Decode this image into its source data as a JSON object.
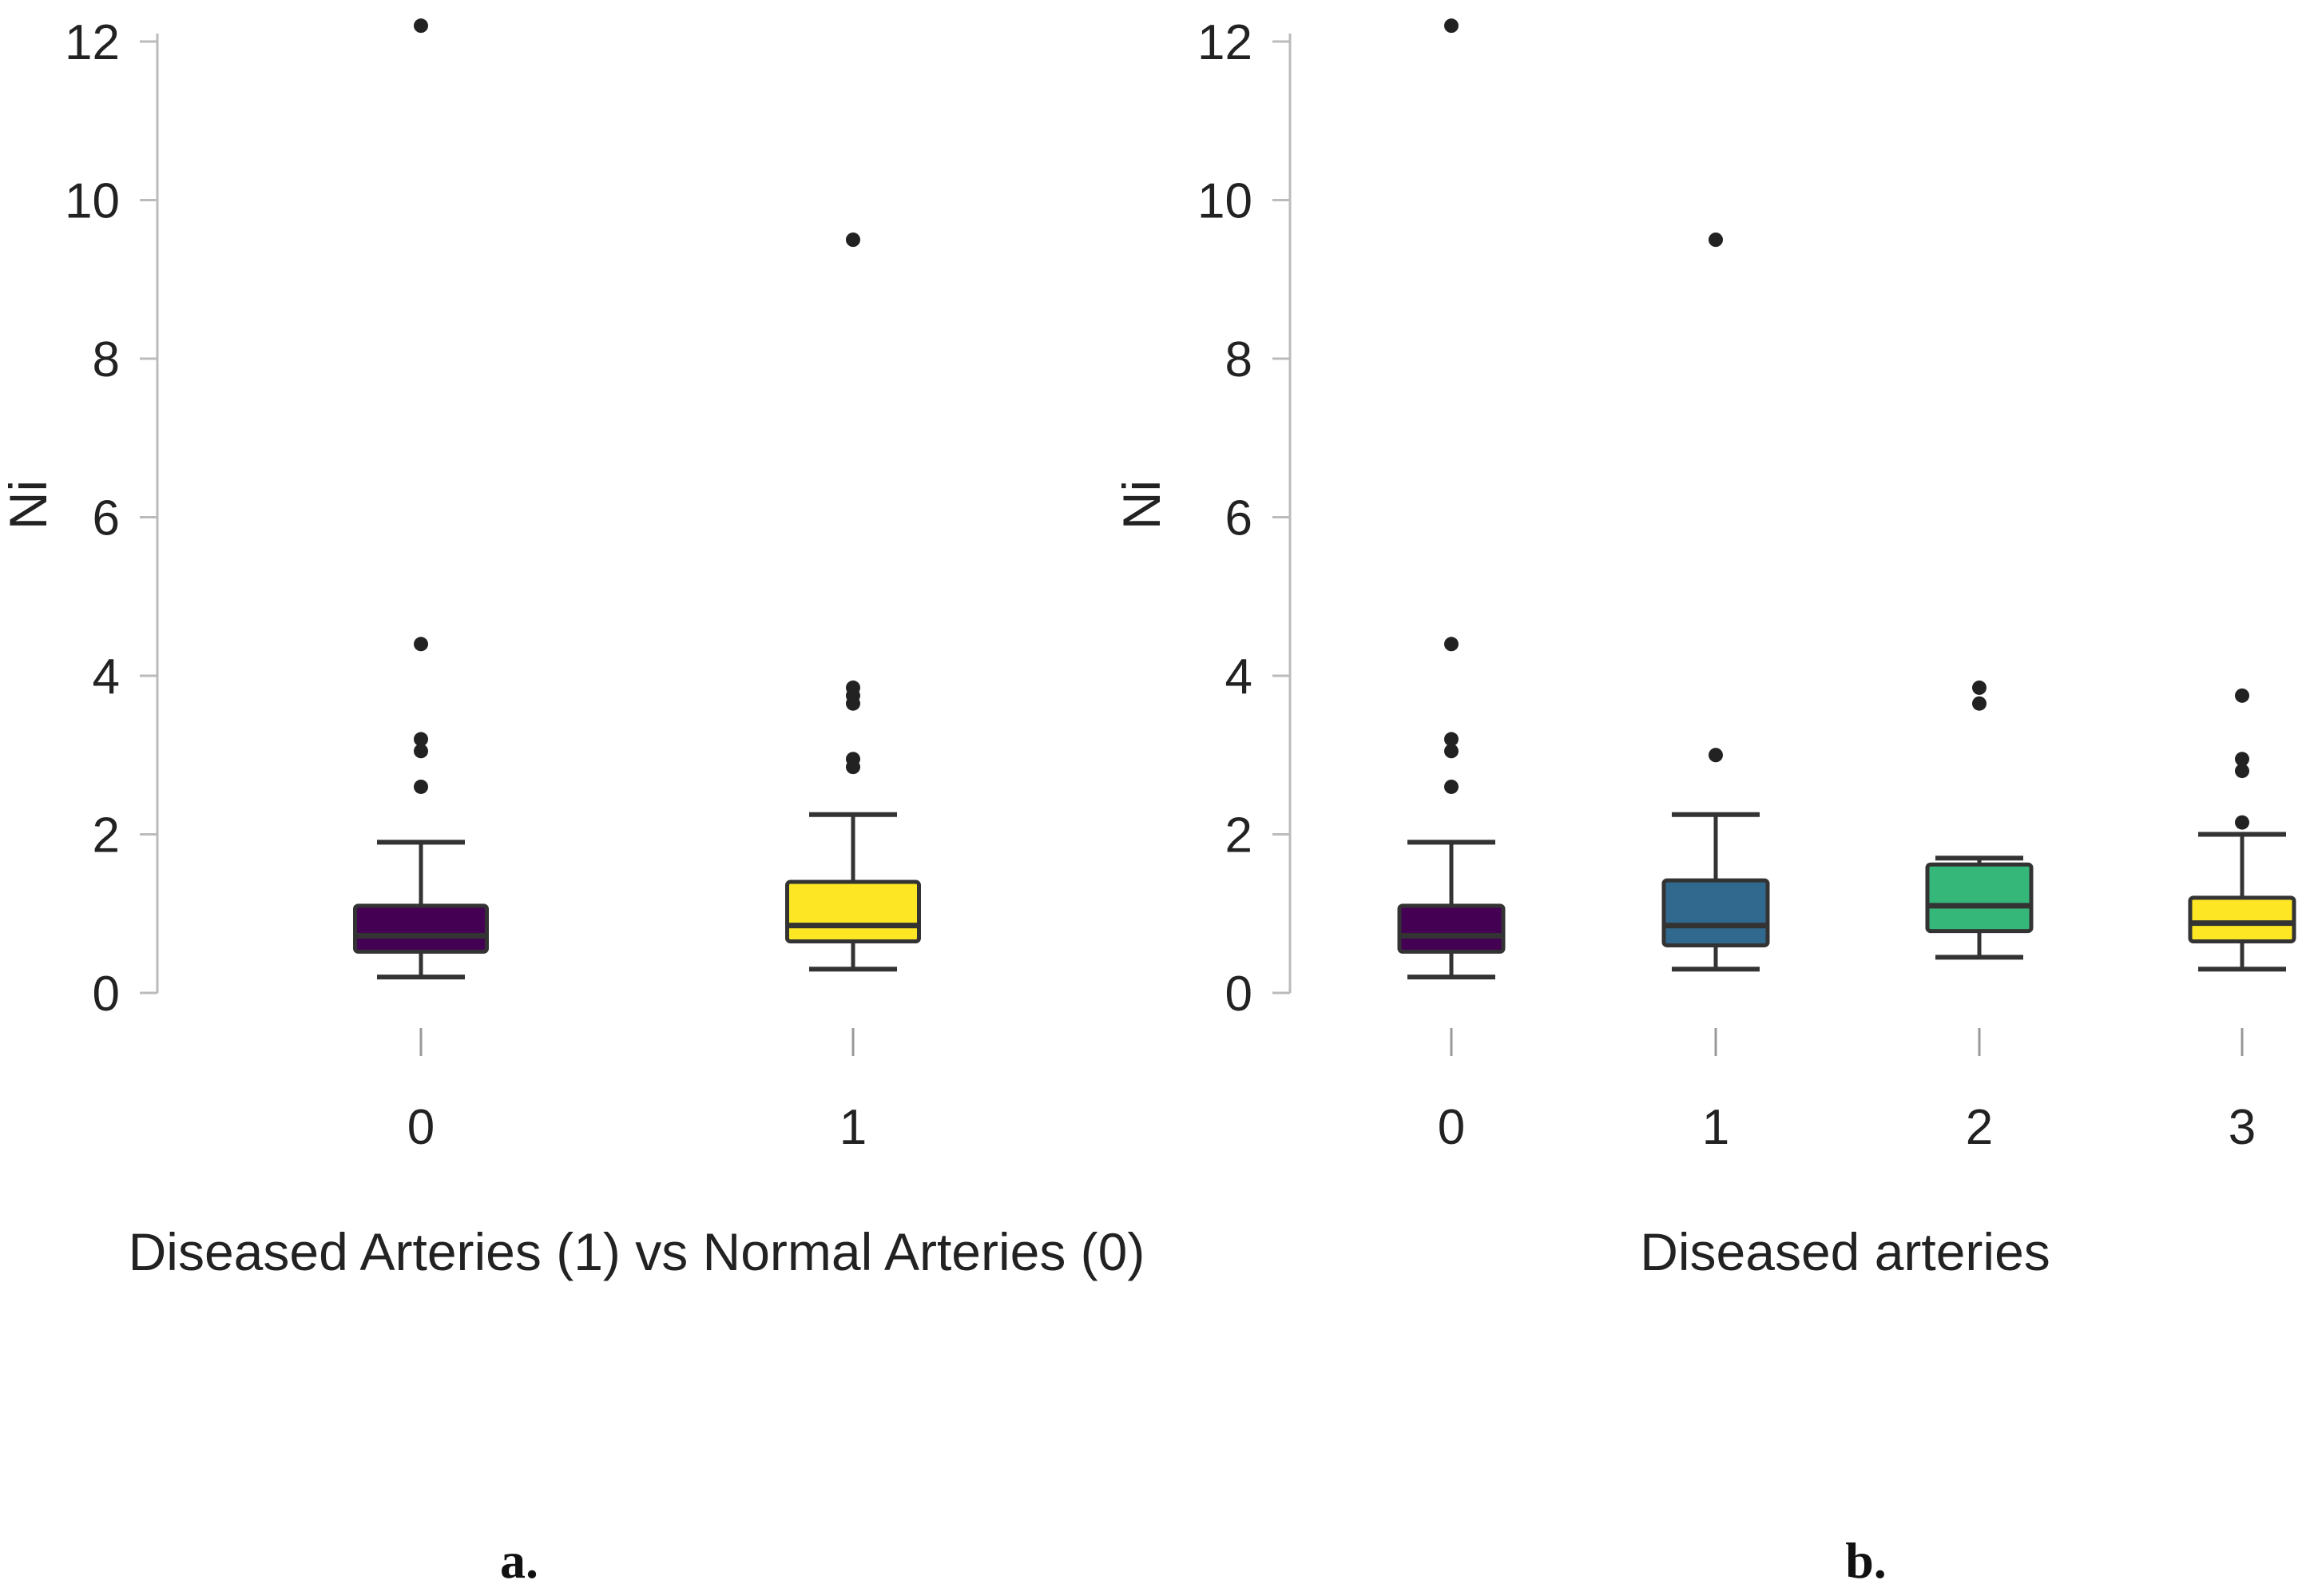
{
  "colors": {
    "purple": "#440154",
    "blue": "#31688e",
    "green": "#35b779",
    "yellow": "#fde725",
    "axis": "#bbbbbb",
    "stroke": "#333333"
  },
  "chart_data": [
    {
      "type": "boxplot",
      "panel_label": "a.",
      "xlabel": "Diseased Arteries (1) vs Normal Arteries (0)",
      "ylabel": "Ni",
      "ylim": [
        0,
        12
      ],
      "yticks": [
        "0",
        "2",
        "4",
        "6",
        "8",
        "10",
        "12"
      ],
      "categories": [
        "0",
        "1"
      ],
      "boxes": [
        {
          "category": "0",
          "color": "#440154",
          "min": 0.2,
          "q1": 0.52,
          "median": 0.72,
          "q3": 1.1,
          "max": 1.9,
          "outliers": [
            12.2,
            4.4,
            3.2,
            3.05,
            2.6
          ]
        },
        {
          "category": "1",
          "color": "#fde725",
          "min": 0.3,
          "q1": 0.65,
          "median": 0.85,
          "q3": 1.4,
          "max": 2.25,
          "outliers": [
            9.5,
            3.85,
            3.75,
            3.65,
            2.95,
            2.85
          ]
        }
      ]
    },
    {
      "type": "boxplot",
      "panel_label": "b.",
      "xlabel": "Diseased arteries",
      "ylabel": "Ni",
      "ylim": [
        0,
        12
      ],
      "yticks": [
        "0",
        "2",
        "4",
        "6",
        "8",
        "10",
        "12"
      ],
      "categories": [
        "0",
        "1",
        "2",
        "3"
      ],
      "boxes": [
        {
          "category": "0",
          "color": "#440154",
          "min": 0.2,
          "q1": 0.52,
          "median": 0.72,
          "q3": 1.1,
          "max": 1.9,
          "outliers": [
            12.2,
            4.4,
            3.2,
            3.05,
            2.6
          ]
        },
        {
          "category": "1",
          "color": "#31688e",
          "min": 0.3,
          "q1": 0.6,
          "median": 0.85,
          "q3": 1.42,
          "max": 2.25,
          "outliers": [
            9.5,
            3.0
          ]
        },
        {
          "category": "2",
          "color": "#35b779",
          "min": 0.45,
          "q1": 0.78,
          "median": 1.1,
          "q3": 1.62,
          "max": 1.7,
          "outliers": [
            3.85,
            3.65
          ]
        },
        {
          "category": "3",
          "color": "#fde725",
          "min": 0.3,
          "q1": 0.65,
          "median": 0.88,
          "q3": 1.2,
          "max": 2.0,
          "outliers": [
            3.75,
            2.95,
            2.8,
            2.15
          ]
        }
      ]
    }
  ]
}
